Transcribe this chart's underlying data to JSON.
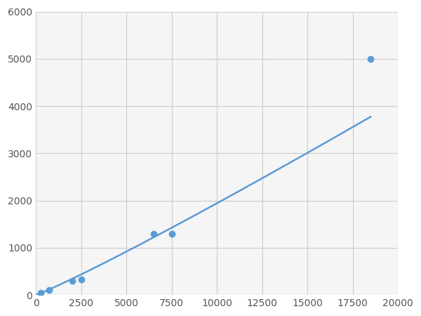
{
  "x": [
    250,
    750,
    2000,
    2500,
    6500,
    7500,
    18500
  ],
  "y": [
    50,
    100,
    300,
    325,
    1300,
    1300,
    5000
  ],
  "line_color": "#5b9bd5",
  "marker_color": "#5b9bd5",
  "marker_size": 6,
  "line_width": 1.8,
  "xlim": [
    0,
    20000
  ],
  "ylim": [
    0,
    6000
  ],
  "xticks": [
    0,
    2500,
    5000,
    7500,
    10000,
    12500,
    15000,
    17500,
    20000
  ],
  "yticks": [
    0,
    1000,
    2000,
    3000,
    4000,
    5000,
    6000
  ],
  "grid_color": "#cccccc",
  "background_color": "#f5f5f5",
  "figure_background": "#ffffff",
  "tick_label_fontsize": 10,
  "tick_color": "#555555"
}
